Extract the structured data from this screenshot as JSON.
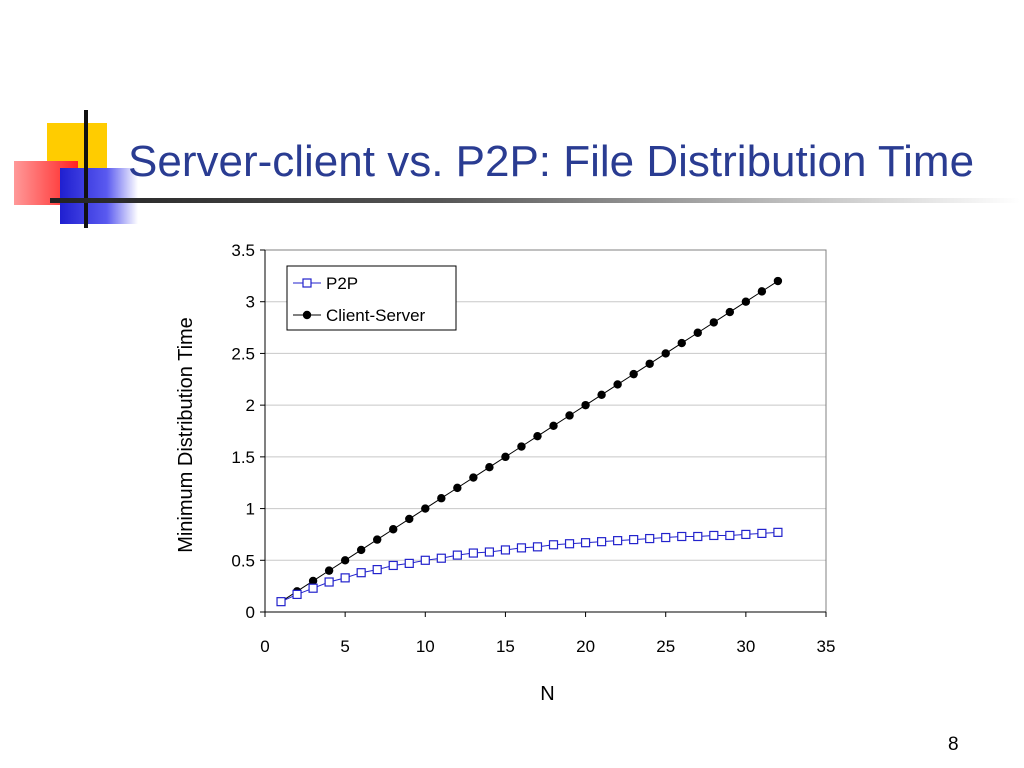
{
  "slide": {
    "title": "Server-client vs. P2P: File Distribution Time",
    "page_number": "8"
  },
  "colors": {
    "title": "#2a3c92",
    "p2p": "#2222cc",
    "client_server": "#000000",
    "grid": "#c8c8c8"
  },
  "chart_data": {
    "type": "line",
    "xlabel": "N",
    "ylabel": "Minimum Distribution Time",
    "xlim": [
      0,
      35
    ],
    "ylim": [
      0,
      3.5
    ],
    "x_ticks": [
      0,
      5,
      10,
      15,
      20,
      25,
      30,
      35
    ],
    "y_ticks": [
      0,
      0.5,
      1,
      1.5,
      2,
      2.5,
      3,
      3.5
    ],
    "x_tick_labels": [
      "0",
      "5",
      "10",
      "15",
      "20",
      "25",
      "30",
      "35"
    ],
    "y_tick_labels": [
      "0",
      "0.5",
      "1",
      "1.5",
      "2",
      "2.5",
      "3",
      "3.5"
    ],
    "grid": "horizontal",
    "legend_position": "top-left",
    "series": [
      {
        "name": "P2P",
        "marker": "open-square",
        "x": [
          1,
          2,
          3,
          4,
          5,
          6,
          7,
          8,
          9,
          10,
          11,
          12,
          13,
          14,
          15,
          16,
          17,
          18,
          19,
          20,
          21,
          22,
          23,
          24,
          25,
          26,
          27,
          28,
          29,
          30,
          31,
          32
        ],
        "values": [
          0.1,
          0.17,
          0.23,
          0.29,
          0.33,
          0.38,
          0.41,
          0.45,
          0.47,
          0.5,
          0.52,
          0.55,
          0.57,
          0.58,
          0.6,
          0.62,
          0.63,
          0.65,
          0.66,
          0.67,
          0.68,
          0.69,
          0.7,
          0.71,
          0.72,
          0.73,
          0.73,
          0.74,
          0.74,
          0.75,
          0.76,
          0.77
        ]
      },
      {
        "name": "Client-Server",
        "marker": "filled-circle",
        "x": [
          1,
          2,
          3,
          4,
          5,
          6,
          7,
          8,
          9,
          10,
          11,
          12,
          13,
          14,
          15,
          16,
          17,
          18,
          19,
          20,
          21,
          22,
          23,
          24,
          25,
          26,
          27,
          28,
          29,
          30,
          31,
          32
        ],
        "values": [
          0.1,
          0.2,
          0.3,
          0.4,
          0.5,
          0.6,
          0.7,
          0.8,
          0.9,
          1.0,
          1.1,
          1.2,
          1.3,
          1.4,
          1.5,
          1.6,
          1.7,
          1.8,
          1.9,
          2.0,
          2.1,
          2.2,
          2.3,
          2.4,
          2.5,
          2.6,
          2.7,
          2.8,
          2.9,
          3.0,
          3.1,
          3.2
        ]
      }
    ]
  }
}
